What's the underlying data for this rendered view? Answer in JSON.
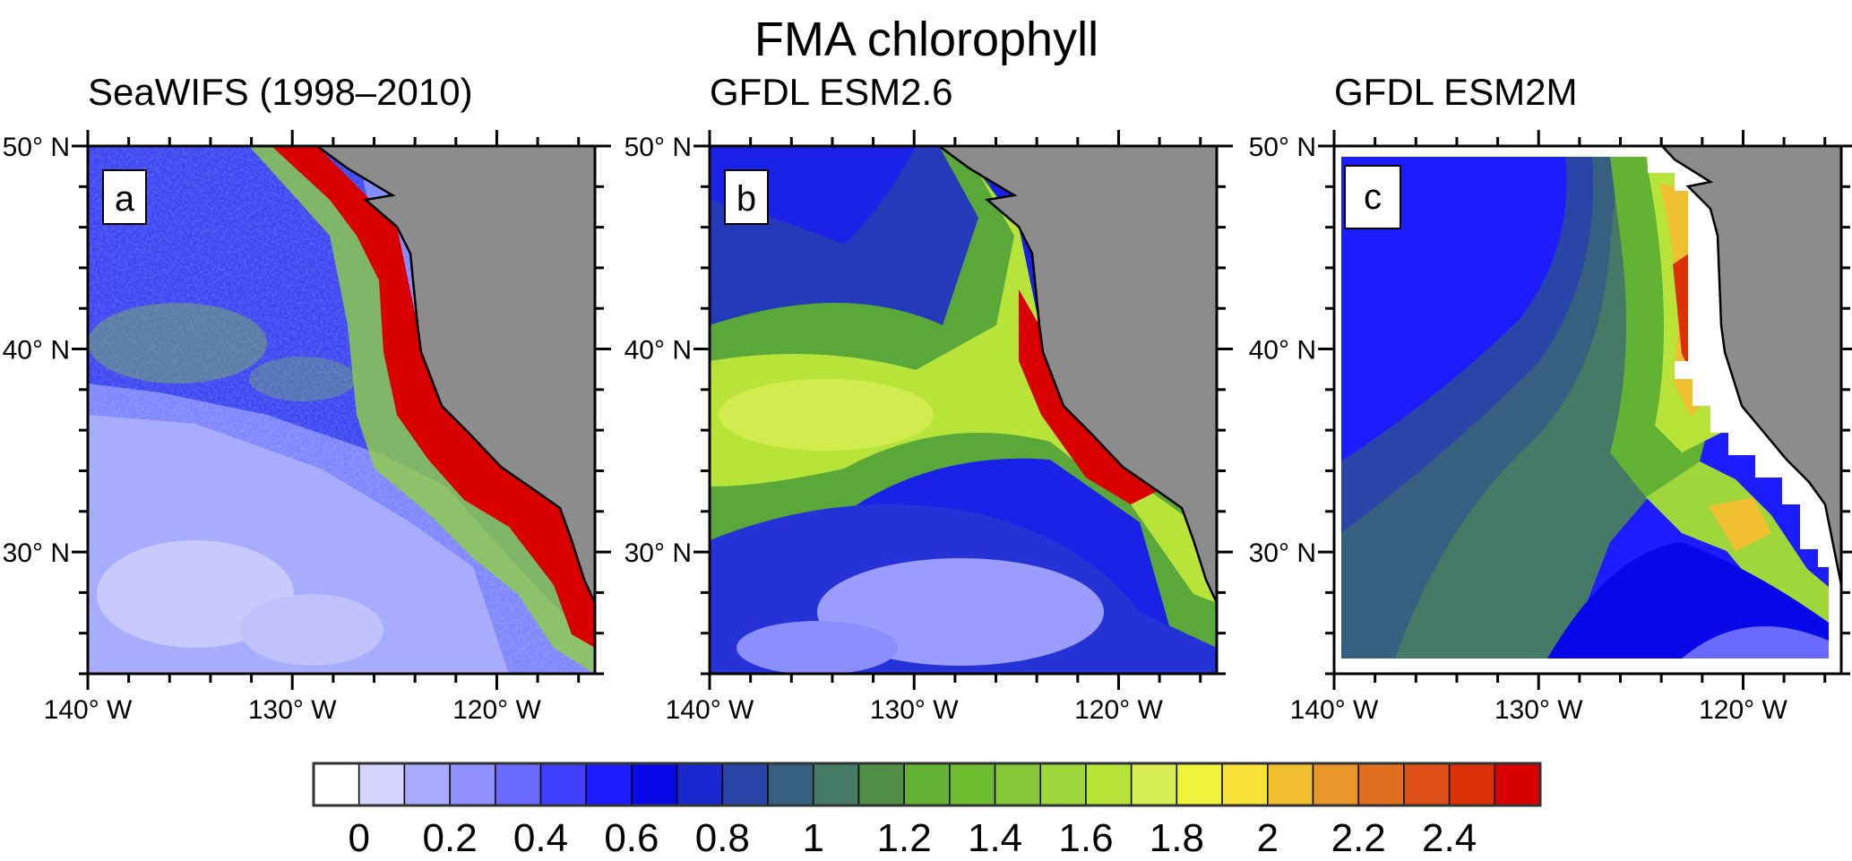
{
  "chart_data": {
    "type": "heatmap",
    "title": "FMA chlorophyll",
    "lon_range": [
      -140,
      -115.2
    ],
    "lat_range": [
      24,
      50
    ],
    "x_ticks": [
      -140,
      -130,
      -120
    ],
    "x_tick_labels": [
      "140° W",
      "130° W",
      "120° W"
    ],
    "y_ticks": [
      50,
      40,
      30
    ],
    "y_tick_labels": [
      "50° N",
      "40° N",
      "30° N"
    ],
    "panels": [
      {
        "letter": "a",
        "title": "SeaWIFS (1998–2010)"
      },
      {
        "letter": "b",
        "title": "GFDL ESM2.6"
      },
      {
        "letter": "c",
        "title": "GFDL ESM2M"
      }
    ],
    "colorbar": {
      "min": -0.1,
      "step": 0.1,
      "colors": [
        "#ffffff",
        "#d4d4fe",
        "#aaaafe",
        "#8f8ffe",
        "#6a6afe",
        "#4040fe",
        "#1c1cfe",
        "#0808e8",
        "#1a28d0",
        "#2a45a8",
        "#376080",
        "#457b66",
        "#4f8e44",
        "#62b233",
        "#6fbd30",
        "#85c83a",
        "#9fd63a",
        "#b8e43a",
        "#d8ee55",
        "#eef23a",
        "#f8e23a",
        "#f0c030",
        "#e89828",
        "#e07020",
        "#de5018",
        "#dc3008",
        "#d80000"
      ],
      "tick_values": [
        0,
        0.2,
        0.4,
        0.6,
        0.8,
        1,
        1.2,
        1.4,
        1.6,
        1.8,
        2,
        2.2,
        2.4
      ],
      "tick_labels": [
        "0",
        "0.2",
        "0.4",
        "0.6",
        "0.8",
        "1",
        "1.2",
        "1.4",
        "1.6",
        "1.8",
        "2",
        "2.2",
        "2.4"
      ]
    },
    "land_color": "#8c8c8c"
  }
}
